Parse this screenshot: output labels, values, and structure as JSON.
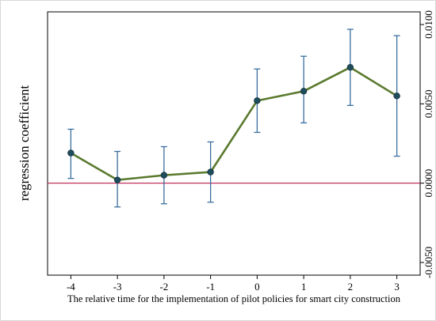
{
  "chart_data": {
    "type": "line",
    "title": "",
    "xlabel": "The relative time for the implementation of pilot policies for smart city construction",
    "ylabel": "regression coefficient",
    "x": [
      -4,
      -3,
      -2,
      -1,
      0,
      1,
      2,
      3
    ],
    "x_ticks": [
      "-4",
      "-3",
      "-2",
      "-1",
      "0",
      "1",
      "2",
      "3"
    ],
    "xlim": [
      -4.5,
      3.5
    ],
    "ylim": [
      -0.0058,
      0.0108
    ],
    "y_ticks": [
      -0.005,
      0,
      0.005,
      0.01
    ],
    "y_tick_labels": [
      "-0.0050",
      "0.0000",
      "0.0050",
      "0.0100"
    ],
    "series": [
      {
        "values": [
          0.0019,
          0.0002,
          0.0005,
          0.0007,
          0.0052,
          0.0058,
          0.0073,
          0.0055
        ],
        "ci_low": [
          0.0003,
          -0.0015,
          -0.0013,
          -0.0012,
          0.0032,
          0.0038,
          0.0049,
          0.0017
        ],
        "ci_high": [
          0.0034,
          0.002,
          0.0023,
          0.0026,
          0.0072,
          0.008,
          0.0097,
          0.0093
        ],
        "color": "#5a7a2e"
      }
    ],
    "reference_line": {
      "y": 0,
      "color": "#c0305a"
    },
    "errorbar_color": "#3a6f9e",
    "marker_color": "#1e4d5c",
    "grid": false,
    "legend": "none"
  }
}
